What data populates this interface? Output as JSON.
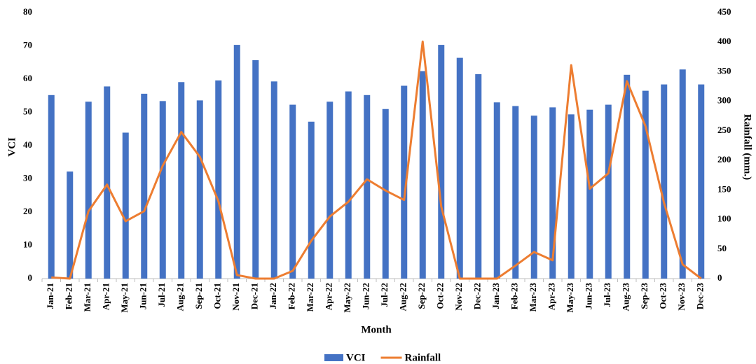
{
  "chart_data": {
    "type": "bar-line",
    "x_label": "Month",
    "y_label": "VCI",
    "y2_label": "Rainfall (mm.)",
    "categories": [
      "Jan-21",
      "Feb-21",
      "Mar-21",
      "Apr-21",
      "May-21",
      "Jun-21",
      "Jul-21",
      "Aug-21",
      "Sep-21",
      "Oct-21",
      "Nov-21",
      "Dec-21",
      "Jan-22",
      "Feb-22",
      "Mar-22",
      "Apr-22",
      "May-22",
      "Jun-22",
      "Jul-22",
      "Aug-22",
      "Sep-22",
      "Oct-22",
      "Nov-22",
      "Dec-22",
      "Jan-23",
      "Feb-23",
      "Mar-23",
      "Apr-23",
      "May-23",
      "Jun-23",
      "Jul-23",
      "Aug-23",
      "Sep-23",
      "Oct-23",
      "Nov-23",
      "Dec-23"
    ],
    "series": [
      {
        "name": "VCI",
        "type": "bar",
        "color": "#4472c4",
        "values": [
          55.2,
          32.2,
          53.2,
          57.8,
          43.9,
          55.6,
          53.4,
          59.1,
          53.6,
          59.6,
          70.3,
          65.7,
          59.3,
          52.3,
          47.2,
          53.2,
          56.3,
          55.2,
          51.0,
          58.0,
          62.4,
          70.3,
          66.4,
          61.5,
          53.0,
          51.9,
          49.0,
          51.5,
          49.4,
          50.8,
          52.3,
          61.3,
          56.5,
          58.4,
          62.9,
          58.4
        ]
      },
      {
        "name": "Rainfall",
        "type": "line",
        "axis": "y2",
        "color": "#ed7d31",
        "values": [
          2,
          0,
          114,
          159,
          97,
          114,
          191,
          248,
          206,
          131,
          6,
          0,
          0,
          13,
          64,
          105,
          130,
          168,
          149,
          133,
          401,
          122,
          0,
          0,
          0,
          22,
          45,
          31,
          361,
          152,
          178,
          334,
          258,
          128,
          24,
          0
        ]
      }
    ],
    "ylim": [
      0,
      80
    ],
    "yticks": [
      0,
      10,
      20,
      30,
      40,
      50,
      60,
      70,
      80
    ],
    "y2lim": [
      0,
      450
    ],
    "y2ticks": [
      0,
      50,
      100,
      150,
      200,
      250,
      300,
      350,
      400,
      450
    ],
    "grid": false,
    "legend": "bottom"
  }
}
